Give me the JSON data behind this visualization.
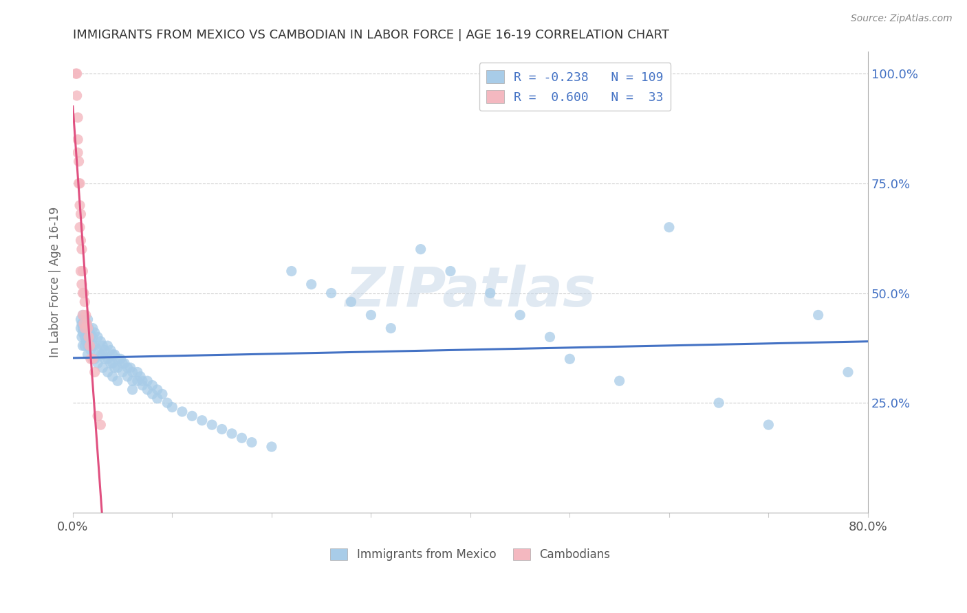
{
  "title": "IMMIGRANTS FROM MEXICO VS CAMBODIAN IN LABOR FORCE | AGE 16-19 CORRELATION CHART",
  "source": "Source: ZipAtlas.com",
  "ylabel": "In Labor Force | Age 16-19",
  "xlim": [
    0.0,
    0.8
  ],
  "ylim": [
    0.0,
    1.05
  ],
  "blue_scatter_color": "#a8cce8",
  "pink_scatter_color": "#f4b8c0",
  "blue_line_color": "#4472c4",
  "pink_line_color": "#e05080",
  "watermark": "ZIPatlas",
  "background_color": "#ffffff",
  "mexico_x": [
    0.008,
    0.008,
    0.009,
    0.009,
    0.01,
    0.01,
    0.01,
    0.01,
    0.01,
    0.012,
    0.012,
    0.012,
    0.012,
    0.013,
    0.013,
    0.013,
    0.015,
    0.015,
    0.015,
    0.015,
    0.015,
    0.016,
    0.016,
    0.017,
    0.017,
    0.018,
    0.018,
    0.02,
    0.02,
    0.02,
    0.02,
    0.022,
    0.022,
    0.022,
    0.025,
    0.025,
    0.025,
    0.028,
    0.028,
    0.03,
    0.03,
    0.03,
    0.032,
    0.032,
    0.035,
    0.035,
    0.035,
    0.038,
    0.038,
    0.04,
    0.04,
    0.04,
    0.042,
    0.042,
    0.045,
    0.045,
    0.045,
    0.048,
    0.05,
    0.05,
    0.052,
    0.055,
    0.055,
    0.058,
    0.06,
    0.06,
    0.06,
    0.065,
    0.065,
    0.068,
    0.07,
    0.07,
    0.075,
    0.075,
    0.08,
    0.08,
    0.085,
    0.085,
    0.09,
    0.095,
    0.1,
    0.11,
    0.12,
    0.13,
    0.14,
    0.15,
    0.16,
    0.17,
    0.18,
    0.2,
    0.22,
    0.24,
    0.26,
    0.28,
    0.3,
    0.32,
    0.35,
    0.38,
    0.42,
    0.45,
    0.48,
    0.5,
    0.55,
    0.6,
    0.65,
    0.7,
    0.75,
    0.78
  ],
  "mexico_y": [
    0.42,
    0.44,
    0.43,
    0.4,
    0.45,
    0.43,
    0.42,
    0.41,
    0.38,
    0.44,
    0.42,
    0.4,
    0.38,
    0.43,
    0.41,
    0.39,
    0.44,
    0.42,
    0.4,
    0.38,
    0.36,
    0.42,
    0.39,
    0.41,
    0.38,
    0.4,
    0.37,
    0.42,
    0.4,
    0.38,
    0.35,
    0.41,
    0.38,
    0.35,
    0.4,
    0.37,
    0.34,
    0.39,
    0.36,
    0.38,
    0.36,
    0.33,
    0.37,
    0.35,
    0.38,
    0.35,
    0.32,
    0.37,
    0.34,
    0.36,
    0.34,
    0.31,
    0.36,
    0.33,
    0.35,
    0.33,
    0.3,
    0.35,
    0.34,
    0.32,
    0.34,
    0.33,
    0.31,
    0.33,
    0.32,
    0.3,
    0.28,
    0.32,
    0.3,
    0.31,
    0.3,
    0.29,
    0.3,
    0.28,
    0.29,
    0.27,
    0.28,
    0.26,
    0.27,
    0.25,
    0.24,
    0.23,
    0.22,
    0.21,
    0.2,
    0.19,
    0.18,
    0.17,
    0.16,
    0.15,
    0.55,
    0.52,
    0.5,
    0.48,
    0.45,
    0.42,
    0.6,
    0.55,
    0.5,
    0.45,
    0.4,
    0.35,
    0.3,
    0.65,
    0.25,
    0.2,
    0.45,
    0.32
  ],
  "cambodian_x": [
    0.003,
    0.004,
    0.004,
    0.005,
    0.005,
    0.005,
    0.006,
    0.006,
    0.007,
    0.007,
    0.007,
    0.008,
    0.008,
    0.008,
    0.009,
    0.009,
    0.01,
    0.01,
    0.01,
    0.011,
    0.011,
    0.012,
    0.012,
    0.013,
    0.014,
    0.015,
    0.016,
    0.017,
    0.018,
    0.02,
    0.022,
    0.025,
    0.028
  ],
  "cambodian_y": [
    1.0,
    1.0,
    0.95,
    0.9,
    0.85,
    0.82,
    0.8,
    0.75,
    0.75,
    0.7,
    0.65,
    0.68,
    0.62,
    0.55,
    0.6,
    0.52,
    0.55,
    0.5,
    0.45,
    0.5,
    0.43,
    0.48,
    0.42,
    0.45,
    0.43,
    0.42,
    0.4,
    0.38,
    0.35,
    0.35,
    0.32,
    0.22,
    0.2
  ]
}
